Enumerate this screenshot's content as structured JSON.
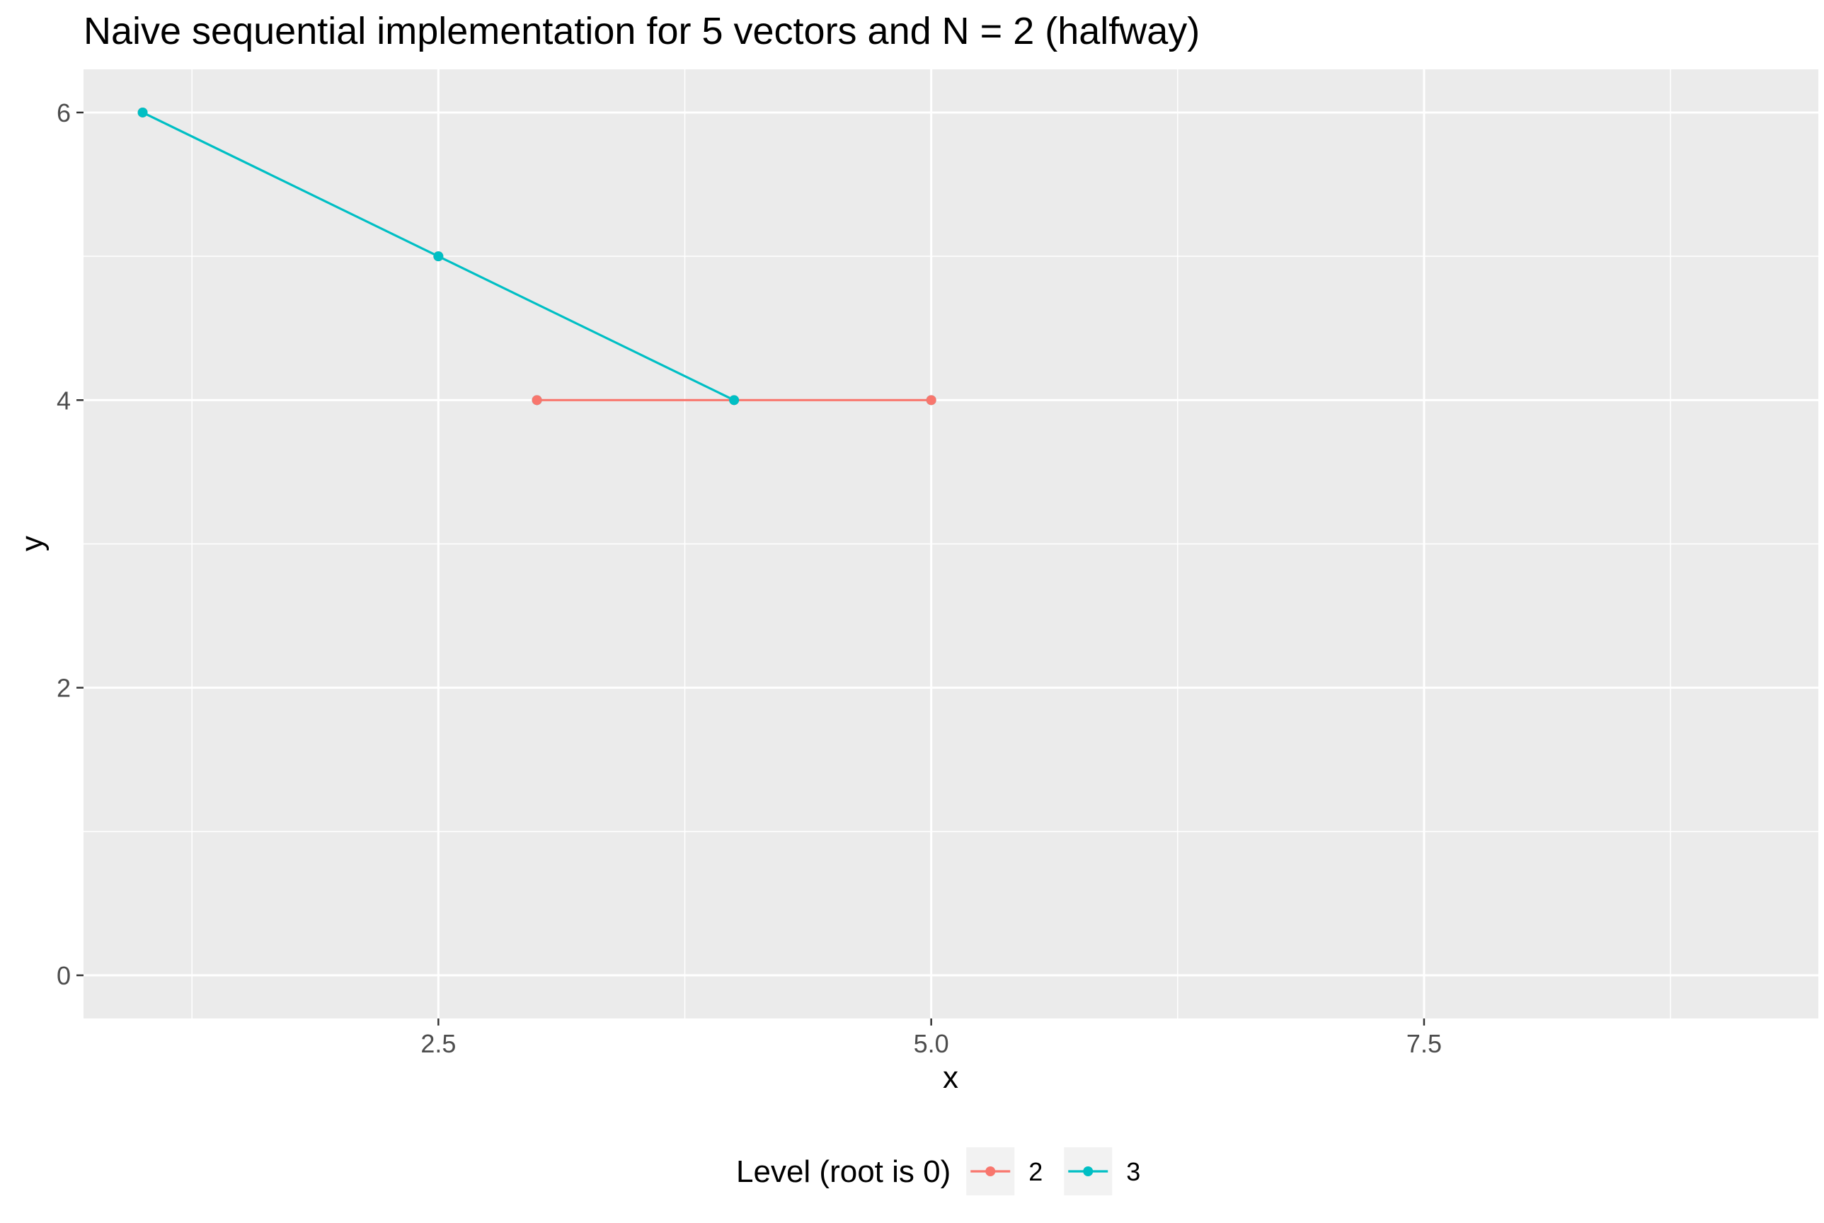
{
  "chart_data": {
    "type": "line",
    "title": "Naive sequential implementation for 5 vectors and N = 2 (halfway)",
    "xlabel": "x",
    "ylabel": "y",
    "xlim": [
      0.7,
      9.5
    ],
    "ylim": [
      -0.3,
      6.3
    ],
    "x_ticks": [
      2.5,
      5.0,
      7.5
    ],
    "x_tick_labels": [
      "2.5",
      "5.0",
      "7.5"
    ],
    "x_minor_ticks": [
      1.25,
      3.75,
      6.25,
      8.75
    ],
    "y_ticks": [
      0,
      2,
      4,
      6
    ],
    "y_tick_labels": [
      "0",
      "2",
      "4",
      "6"
    ],
    "y_minor_ticks": [
      1,
      3,
      5
    ],
    "grid": true,
    "background": "#EBEBEB",
    "legend": {
      "title": "Level (root is 0)",
      "position": "bottom"
    },
    "series": [
      {
        "name": "2",
        "color": "#F8766D",
        "points": [
          {
            "x": 3,
            "y": 4
          },
          {
            "x": 4,
            "y": 4
          },
          {
            "x": 5,
            "y": 4
          }
        ],
        "extra_points": [
          {
            "x": 1,
            "y": 6
          },
          {
            "x": 2.5,
            "y": 5
          }
        ]
      },
      {
        "name": "3",
        "color": "#00BFC4",
        "points": [
          {
            "x": 1,
            "y": 6
          },
          {
            "x": 2.5,
            "y": 5
          },
          {
            "x": 4,
            "y": 4
          }
        ],
        "extra_points": [
          {
            "x": 3,
            "y": 4
          },
          {
            "x": 5,
            "y": 4
          }
        ]
      }
    ]
  }
}
